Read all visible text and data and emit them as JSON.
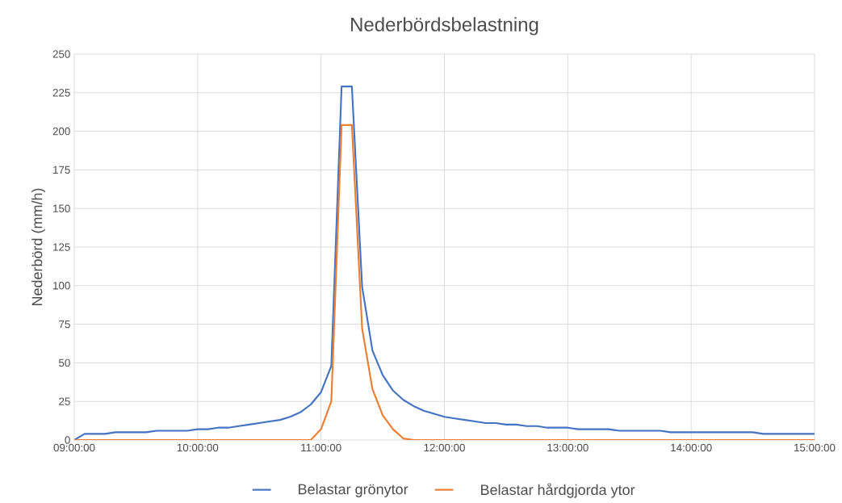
{
  "chart_data": {
    "type": "line",
    "title": "Nederbördsbelastning",
    "ylabel": "Nederbörd (mm/h)",
    "x": [
      9,
      9.0833,
      9.1667,
      9.25,
      9.3333,
      9.4167,
      9.5,
      9.5833,
      9.6667,
      9.75,
      9.8333,
      9.9167,
      10,
      10.0833,
      10.1667,
      10.25,
      10.3333,
      10.4167,
      10.5,
      10.5833,
      10.6667,
      10.75,
      10.8333,
      10.9167,
      11,
      11.0833,
      11.1667,
      11.25,
      11.3333,
      11.4167,
      11.5,
      11.5833,
      11.6667,
      11.75,
      11.8333,
      11.9167,
      12,
      12.0833,
      12.1667,
      12.25,
      12.3333,
      12.4167,
      12.5,
      12.5833,
      12.6667,
      12.75,
      12.8333,
      12.9167,
      13,
      13.0833,
      13.1667,
      13.25,
      13.3333,
      13.4167,
      13.5,
      13.5833,
      13.6667,
      13.75,
      13.8333,
      13.9167,
      14,
      14.0833,
      14.1667,
      14.25,
      14.3333,
      14.4167,
      14.5,
      14.5833,
      14.6667,
      14.75,
      14.8333,
      14.9167,
      15
    ],
    "series": [
      {
        "name": "Belastar grönytor",
        "color": "#4472c4",
        "values": [
          0,
          4,
          4,
          4,
          5,
          5,
          5,
          5,
          6,
          6,
          6,
          6,
          7,
          7,
          8,
          8,
          9,
          10,
          11,
          12,
          13,
          15,
          18,
          23,
          31,
          48,
          229,
          229,
          99,
          58,
          42,
          32,
          26,
          22,
          19,
          17,
          15,
          14,
          13,
          12,
          11,
          11,
          10,
          10,
          9,
          9,
          8,
          8,
          8,
          7,
          7,
          7,
          7,
          6,
          6,
          6,
          6,
          6,
          5,
          5,
          5,
          5,
          5,
          5,
          5,
          5,
          5,
          4,
          4,
          4,
          4,
          4,
          4
        ]
      },
      {
        "name": "Belastar hårdgjorda ytor",
        "color": "#ed7d31",
        "values": [
          0,
          0,
          0,
          0,
          0,
          0,
          0,
          0,
          0,
          0,
          0,
          0,
          0,
          0,
          0,
          0,
          0,
          0,
          0,
          0,
          0,
          0,
          0,
          0,
          7,
          25,
          204,
          204,
          72,
          33,
          16,
          7,
          1,
          0,
          0,
          0,
          0,
          0,
          0,
          0,
          0,
          0,
          0,
          0,
          0,
          0,
          0,
          0,
          0,
          0,
          0,
          0,
          0,
          0,
          0,
          0,
          0,
          0,
          0,
          0,
          0,
          0,
          0,
          0,
          0,
          0,
          0,
          0,
          0,
          0,
          0,
          0,
          0
        ]
      }
    ],
    "xlim": [
      9,
      15
    ],
    "ylim": [
      0,
      250
    ],
    "xticks": [
      {
        "value": 9,
        "label": "09:00:00"
      },
      {
        "value": 10,
        "label": "10:00:00"
      },
      {
        "value": 11,
        "label": "11:00:00"
      },
      {
        "value": 12,
        "label": "12:00:00"
      },
      {
        "value": 13,
        "label": "13:00:00"
      },
      {
        "value": 14,
        "label": "14:00:00"
      },
      {
        "value": 15,
        "label": "15:00:00"
      }
    ],
    "yticks": [
      0,
      25,
      50,
      75,
      100,
      125,
      150,
      175,
      200,
      225,
      250
    ],
    "grid": true,
    "legend": "bottom"
  }
}
